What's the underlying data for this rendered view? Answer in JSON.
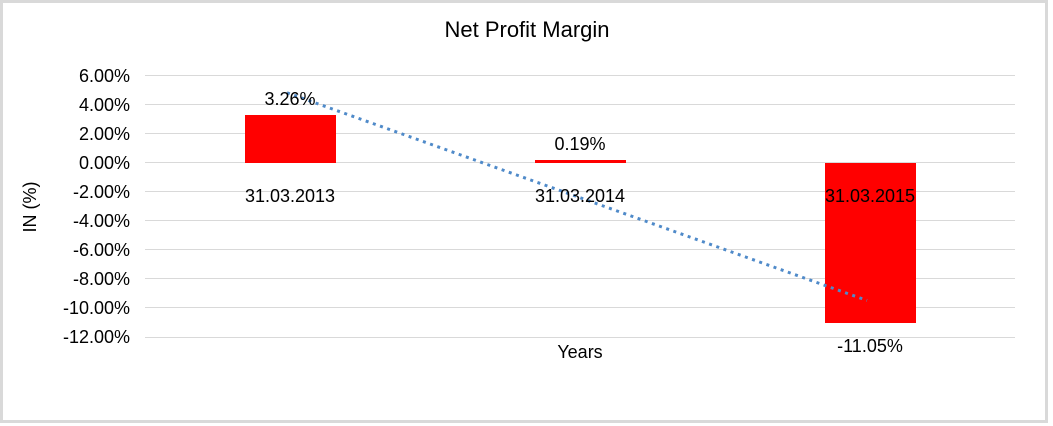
{
  "window": {
    "background": "#ffffff",
    "frame_border_color": "#d9d9d9"
  },
  "chart_data": {
    "type": "bar",
    "title": "Net Profit Margin",
    "xlabel": "Years",
    "ylabel": "IN (%)",
    "categories": [
      "31.03.2013",
      "31.03.2014",
      "31.03.2015"
    ],
    "values": [
      3.26,
      0.19,
      -11.05
    ],
    "value_labels": [
      "3.26%",
      "0.19%",
      "-11.05%"
    ],
    "bar_color": "#ff0000",
    "text_color": "#000000",
    "ylim": [
      -12,
      6
    ],
    "ytick_step": 2,
    "yticks": [
      {
        "value": 6,
        "label": "6.00%"
      },
      {
        "value": 4,
        "label": "4.00%"
      },
      {
        "value": 2,
        "label": "2.00%"
      },
      {
        "value": 0,
        "label": "0.00%"
      },
      {
        "value": -2,
        "label": "-2.00%"
      },
      {
        "value": -4,
        "label": "-4.00%"
      },
      {
        "value": -6,
        "label": "-6.00%"
      },
      {
        "value": -8,
        "label": "-8.00%"
      },
      {
        "value": -10,
        "label": "-10.00%"
      },
      {
        "value": -12,
        "label": "-12.00%"
      }
    ],
    "gridline_color": "#d9d9d9",
    "grid": "horizontal",
    "legend": "none",
    "trendline": {
      "type": "linear",
      "style": "dotted",
      "color": "#4f8ac9",
      "start_category_index": 0,
      "end_category_index": 2,
      "start_value_pct": 4.62,
      "end_value_pct": -9.69
    }
  }
}
